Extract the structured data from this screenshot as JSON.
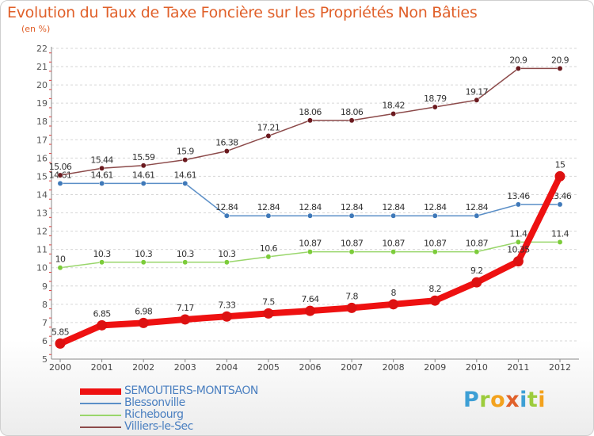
{
  "header": {
    "title": "Evolution du Taux de Taxe Foncière sur les Propriétés Non Bâties",
    "unit_note": "(en %)"
  },
  "logo": {
    "letters": [
      "P",
      "r",
      "o",
      "x",
      "i",
      "t",
      "i"
    ],
    "colors": [
      "#3d9fd5",
      "#9ccc3c",
      "#f3a21d",
      "#e0602a",
      "#3d9fd5",
      "#9ccc3c",
      "#f3a21d"
    ]
  },
  "chart_data": {
    "type": "line",
    "title": "Evolution du Taux de Taxe Foncière sur les Propriétés Non Bâties",
    "ylabel": "(en %)",
    "x": [
      "2000",
      "2001",
      "2002",
      "2003",
      "2004",
      "2005",
      "2006",
      "2007",
      "2008",
      "2009",
      "2010",
      "2011",
      "2012"
    ],
    "ylim": [
      5,
      22
    ],
    "yticks": [
      "5",
      "6",
      "7",
      "8",
      "9",
      "10",
      "11",
      "12",
      "13",
      "14",
      "15",
      "16",
      "17",
      "18",
      "19",
      "20",
      "21",
      "22"
    ],
    "grid": "horizontal dashed",
    "legend_position": "bottom-left",
    "series": [
      {
        "name": "SEMOUTIERS-MONTSAON",
        "color": "#ee1111",
        "marker_color": "#dd1111",
        "emphasis": "thick",
        "values": [
          5.85,
          6.85,
          6.98,
          7.17,
          7.33,
          7.5,
          7.64,
          7.8,
          8,
          8.2,
          9.2,
          10.35,
          15
        ],
        "labels": [
          "5.85",
          "6.85",
          "6.98",
          "7.17",
          "7.33",
          "7.5",
          "7.64",
          "7.8",
          "8",
          "8.2",
          "9.2",
          "10.35",
          "15"
        ]
      },
      {
        "name": "Blessonville",
        "color": "#5b8fc7",
        "marker_color": "#3f79b9",
        "emphasis": "thin",
        "values": [
          14.61,
          14.61,
          14.61,
          14.61,
          12.84,
          12.84,
          12.84,
          12.84,
          12.84,
          12.84,
          12.84,
          13.46,
          13.46
        ],
        "labels": [
          "14.61",
          "14.61",
          "14.61",
          "14.61",
          "12.84",
          "12.84",
          "12.84",
          "12.84",
          "12.84",
          "12.84",
          "12.84",
          "13.46",
          "13.46"
        ]
      },
      {
        "name": "Richebourg",
        "color": "#99d66b",
        "marker_color": "#7ccc3a",
        "emphasis": "thin",
        "values": [
          10,
          10.3,
          10.3,
          10.3,
          10.3,
          10.6,
          10.87,
          10.87,
          10.87,
          10.87,
          10.87,
          11.4,
          11.4
        ],
        "labels": [
          "10",
          "10.3",
          "10.3",
          "10.3",
          "10.3",
          "10.6",
          "10.87",
          "10.87",
          "10.87",
          "10.87",
          "10.87",
          "11.4",
          "11.4"
        ]
      },
      {
        "name": "Villiers-le-Sec",
        "color": "#8c4a4a",
        "marker_color": "#6b1a1f",
        "emphasis": "thin",
        "values": [
          15.06,
          15.44,
          15.59,
          15.9,
          16.38,
          17.21,
          18.06,
          18.06,
          18.42,
          18.79,
          19.17,
          20.9,
          20.9
        ],
        "labels": [
          "15.06",
          "15.44",
          "15.59",
          "15.9",
          "16.38",
          "17.21",
          "18.06",
          "18.06",
          "18.42",
          "18.79",
          "19.17",
          "20.9",
          "20.9"
        ]
      }
    ]
  }
}
